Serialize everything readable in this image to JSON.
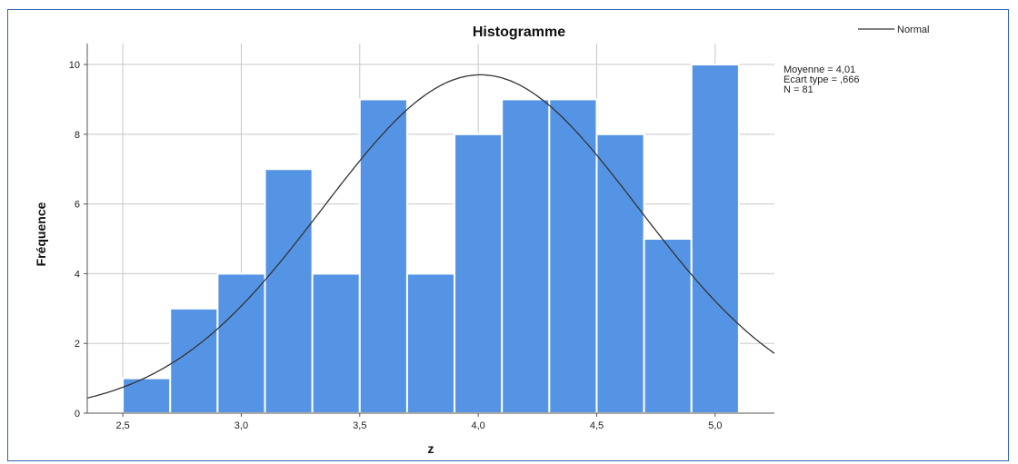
{
  "chart_data": {
    "type": "bar",
    "title": "Histogramme",
    "xlabel": "z",
    "ylabel": "Fréquence",
    "x_ticks": [
      "2,5",
      "3,0",
      "3,5",
      "4,0",
      "4,5",
      "5,0"
    ],
    "x_tick_values": [
      2.5,
      3.0,
      3.5,
      4.0,
      4.5,
      5.0
    ],
    "y_ticks": [
      "0",
      "2",
      "4",
      "6",
      "8",
      "10"
    ],
    "y_tick_values": [
      0,
      2,
      4,
      6,
      8,
      10
    ],
    "xlim": [
      2.35,
      5.25
    ],
    "ylim": [
      0,
      10.6
    ],
    "bins": [
      {
        "x0": 2.5,
        "x1": 2.7,
        "value": 1
      },
      {
        "x0": 2.7,
        "x1": 2.9,
        "value": 3
      },
      {
        "x0": 2.9,
        "x1": 3.1,
        "value": 4
      },
      {
        "x0": 3.1,
        "x1": 3.3,
        "value": 7
      },
      {
        "x0": 3.3,
        "x1": 3.5,
        "value": 4
      },
      {
        "x0": 3.5,
        "x1": 3.7,
        "value": 9
      },
      {
        "x0": 3.7,
        "x1": 3.9,
        "value": 4
      },
      {
        "x0": 3.9,
        "x1": 4.1,
        "value": 8
      },
      {
        "x0": 4.1,
        "x1": 4.3,
        "value": 9
      },
      {
        "x0": 4.3,
        "x1": 4.5,
        "value": 9
      },
      {
        "x0": 4.5,
        "x1": 4.7,
        "value": 8
      },
      {
        "x0": 4.7,
        "x1": 4.9,
        "value": 5
      },
      {
        "x0": 4.9,
        "x1": 5.1,
        "value": 10
      }
    ],
    "normal_curve": {
      "mean": 4.01,
      "sd": 0.666,
      "n": 81,
      "bin_width": 0.2
    },
    "legend": {
      "label": "Normal",
      "placement": "top-right"
    },
    "stats": [
      "Moyenne = 4,01",
      "Ecart type = ,666",
      "N = 81"
    ],
    "grid": true,
    "colors": {
      "bar": "#5594e4",
      "bar_edge": "#ffffff",
      "curve": "#333333",
      "grid": "#c8c8c8",
      "frame": "#2f66b3"
    }
  }
}
